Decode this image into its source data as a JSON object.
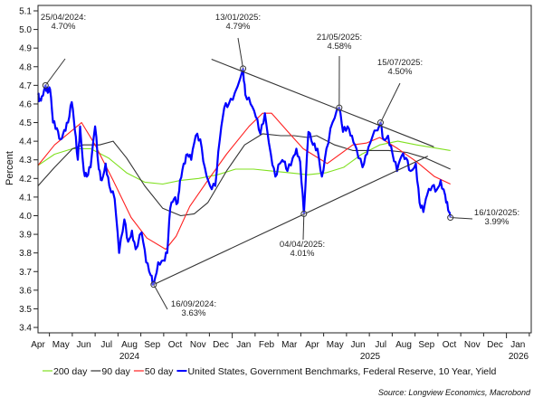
{
  "chart_data": {
    "type": "line",
    "title": "",
    "ylabel": "Percent",
    "xlabel": "",
    "ylim": [
      3.4,
      5.1
    ],
    "yticks": [
      "5.1",
      "5.0",
      "4.9",
      "4.8",
      "4.7",
      "4.6",
      "4.5",
      "4.4",
      "4.3",
      "4.2",
      "4.1",
      "4.0",
      "3.9",
      "3.8",
      "3.7",
      "3.6",
      "3.5",
      "3.4"
    ],
    "x_origin": "2024-04-15",
    "x_unit": "days since origin",
    "xlim_days": [
      0,
      657
    ],
    "month_labels": [
      "Apr",
      "May",
      "Jun",
      "Jul",
      "Aug",
      "Sep",
      "Oct",
      "Nov",
      "Dec",
      "Jan",
      "Feb",
      "Mar",
      "Apr",
      "May",
      "Jun",
      "Jul",
      "Aug",
      "Sep",
      "Oct",
      "Nov",
      "Dec",
      "Jan"
    ],
    "year_labels": [
      "2024",
      "2025",
      "2026"
    ],
    "grid": false,
    "legend_position": "bottom",
    "source": "Source: Longview Economics, Macrobond",
    "colors": {
      "blue": "#0000ff",
      "red": "#ff2020",
      "black": "#333333",
      "green": "#80e020",
      "trend": "#333333"
    },
    "series": [
      {
        "name": "200 day",
        "color": "#80e020",
        "points": [
          [
            0,
            4.27
          ],
          [
            22,
            4.33
          ],
          [
            46,
            4.36
          ],
          [
            70,
            4.36
          ],
          [
            94,
            4.31
          ],
          [
            118,
            4.23
          ],
          [
            142,
            4.18
          ],
          [
            166,
            4.17
          ],
          [
            190,
            4.19
          ],
          [
            214,
            4.2
          ],
          [
            239,
            4.22
          ],
          [
            263,
            4.25
          ],
          [
            287,
            4.25
          ],
          [
            311,
            4.24
          ],
          [
            335,
            4.23
          ],
          [
            359,
            4.22
          ],
          [
            383,
            4.23
          ],
          [
            407,
            4.26
          ],
          [
            431,
            4.33
          ],
          [
            455,
            4.38
          ],
          [
            479,
            4.4
          ],
          [
            504,
            4.38
          ],
          [
            549,
            4.35
          ]
        ]
      },
      {
        "name": "90 day",
        "color": "#333333",
        "points": [
          [
            0,
            4.16
          ],
          [
            22,
            4.26
          ],
          [
            46,
            4.36
          ],
          [
            60,
            4.38
          ],
          [
            82,
            4.38
          ],
          [
            100,
            4.4
          ],
          [
            118,
            4.31
          ],
          [
            142,
            4.16
          ],
          [
            166,
            4.04
          ],
          [
            190,
            4.0
          ],
          [
            208,
            4.01
          ],
          [
            226,
            4.07
          ],
          [
            251,
            4.24
          ],
          [
            275,
            4.38
          ],
          [
            299,
            4.44
          ],
          [
            323,
            4.43
          ],
          [
            341,
            4.43
          ],
          [
            359,
            4.42
          ],
          [
            371,
            4.43
          ],
          [
            395,
            4.38
          ],
          [
            419,
            4.35
          ],
          [
            443,
            4.35
          ],
          [
            467,
            4.35
          ],
          [
            491,
            4.34
          ],
          [
            516,
            4.31
          ],
          [
            549,
            4.25
          ]
        ]
      },
      {
        "name": "50 day",
        "color": "#ff2020",
        "points": [
          [
            0,
            4.27
          ],
          [
            22,
            4.38
          ],
          [
            55,
            4.49
          ],
          [
            58,
            4.5
          ],
          [
            76,
            4.38
          ],
          [
            100,
            4.19
          ],
          [
            124,
            3.99
          ],
          [
            145,
            3.88
          ],
          [
            170,
            3.82
          ],
          [
            184,
            3.89
          ],
          [
            202,
            4.05
          ],
          [
            226,
            4.19
          ],
          [
            251,
            4.33
          ],
          [
            281,
            4.48
          ],
          [
            299,
            4.55
          ],
          [
            311,
            4.55
          ],
          [
            335,
            4.44
          ],
          [
            353,
            4.36
          ],
          [
            365,
            4.33
          ],
          [
            385,
            4.28
          ],
          [
            419,
            4.38
          ],
          [
            437,
            4.39
          ],
          [
            455,
            4.42
          ],
          [
            479,
            4.36
          ],
          [
            504,
            4.29
          ],
          [
            528,
            4.21
          ],
          [
            549,
            4.17
          ]
        ]
      },
      {
        "name": "United States, Government Benchmarks, Federal Reserve, 10 Year, Yield",
        "color": "#0000ff",
        "points": [
          [
            0,
            4.65
          ],
          [
            2,
            4.62
          ],
          [
            5,
            4.64
          ],
          [
            10,
            4.7
          ],
          [
            13,
            4.66
          ],
          [
            16,
            4.68
          ],
          [
            20,
            4.5
          ],
          [
            25,
            4.47
          ],
          [
            30,
            4.41
          ],
          [
            35,
            4.46
          ],
          [
            40,
            4.5
          ],
          [
            45,
            4.61
          ],
          [
            49,
            4.46
          ],
          [
            53,
            4.3
          ],
          [
            56,
            4.48
          ],
          [
            61,
            4.24
          ],
          [
            65,
            4.21
          ],
          [
            70,
            4.26
          ],
          [
            76,
            4.48
          ],
          [
            81,
            4.25
          ],
          [
            85,
            4.19
          ],
          [
            90,
            4.28
          ],
          [
            95,
            4.16
          ],
          [
            102,
            4.09
          ],
          [
            108,
            3.8
          ],
          [
            115,
            3.98
          ],
          [
            120,
            3.86
          ],
          [
            125,
            3.92
          ],
          [
            130,
            3.82
          ],
          [
            138,
            3.91
          ],
          [
            144,
            3.75
          ],
          [
            150,
            3.68
          ],
          [
            154,
            3.63
          ],
          [
            160,
            3.75
          ],
          [
            167,
            3.76
          ],
          [
            172,
            3.8
          ],
          [
            176,
            4.04
          ],
          [
            181,
            4.09
          ],
          [
            186,
            4.07
          ],
          [
            189,
            4.19
          ],
          [
            194,
            4.28
          ],
          [
            199,
            4.33
          ],
          [
            204,
            4.3
          ],
          [
            210,
            4.43
          ],
          [
            216,
            4.41
          ],
          [
            222,
            4.26
          ],
          [
            229,
            4.16
          ],
          [
            236,
            4.16
          ],
          [
            242,
            4.41
          ],
          [
            248,
            4.58
          ],
          [
            254,
            4.6
          ],
          [
            262,
            4.66
          ],
          [
            273,
            4.79
          ],
          [
            276,
            4.65
          ],
          [
            283,
            4.6
          ],
          [
            290,
            4.53
          ],
          [
            296,
            4.44
          ],
          [
            302,
            4.55
          ],
          [
            310,
            4.33
          ],
          [
            316,
            4.21
          ],
          [
            322,
            4.28
          ],
          [
            327,
            4.29
          ],
          [
            332,
            4.24
          ],
          [
            339,
            4.31
          ],
          [
            344,
            4.36
          ],
          [
            349,
            4.29
          ],
          [
            354,
            4.01
          ],
          [
            360,
            4.45
          ],
          [
            366,
            4.38
          ],
          [
            372,
            4.36
          ],
          [
            378,
            4.21
          ],
          [
            384,
            4.36
          ],
          [
            392,
            4.5
          ],
          [
            401,
            4.58
          ],
          [
            406,
            4.45
          ],
          [
            412,
            4.48
          ],
          [
            418,
            4.43
          ],
          [
            424,
            4.36
          ],
          [
            432,
            4.26
          ],
          [
            438,
            4.33
          ],
          [
            444,
            4.41
          ],
          [
            456,
            4.5
          ],
          [
            460,
            4.41
          ],
          [
            466,
            4.43
          ],
          [
            472,
            4.33
          ],
          [
            478,
            4.24
          ],
          [
            484,
            4.32
          ],
          [
            490,
            4.31
          ],
          [
            496,
            4.24
          ],
          [
            503,
            4.28
          ],
          [
            508,
            4.07
          ],
          [
            513,
            4.02
          ],
          [
            518,
            4.11
          ],
          [
            525,
            4.16
          ],
          [
            531,
            4.14
          ],
          [
            536,
            4.19
          ],
          [
            542,
            4.11
          ],
          [
            546,
            4.03
          ],
          [
            549,
            3.99
          ]
        ]
      }
    ],
    "trendlines": [
      {
        "name": "upper-trendline",
        "from": [
          231,
          4.84
        ],
        "to": [
          527,
          4.37
        ]
      },
      {
        "name": "lower-trendline",
        "from": [
          154,
          3.63
        ],
        "to": [
          519,
          4.32
        ]
      }
    ],
    "annotations": [
      {
        "date": "25/04/2024:",
        "value": "4.70%",
        "day": 10,
        "y": 4.7
      },
      {
        "date": "13/01/2025:",
        "value": "4.79%",
        "day": 273,
        "y": 4.79
      },
      {
        "date": "21/05/2025:",
        "value": "4.58%",
        "day": 401,
        "y": 4.58
      },
      {
        "date": "15/07/2025:",
        "value": "4.50%",
        "day": 456,
        "y": 4.5
      },
      {
        "date": "16/09/2024:",
        "value": "3.63%",
        "day": 154,
        "y": 3.63
      },
      {
        "date": "04/04/2025:",
        "value": "4.01%",
        "day": 354,
        "y": 4.01
      },
      {
        "date": "16/10/2025:",
        "value": "3.99%",
        "day": 549,
        "y": 3.99
      }
    ]
  }
}
